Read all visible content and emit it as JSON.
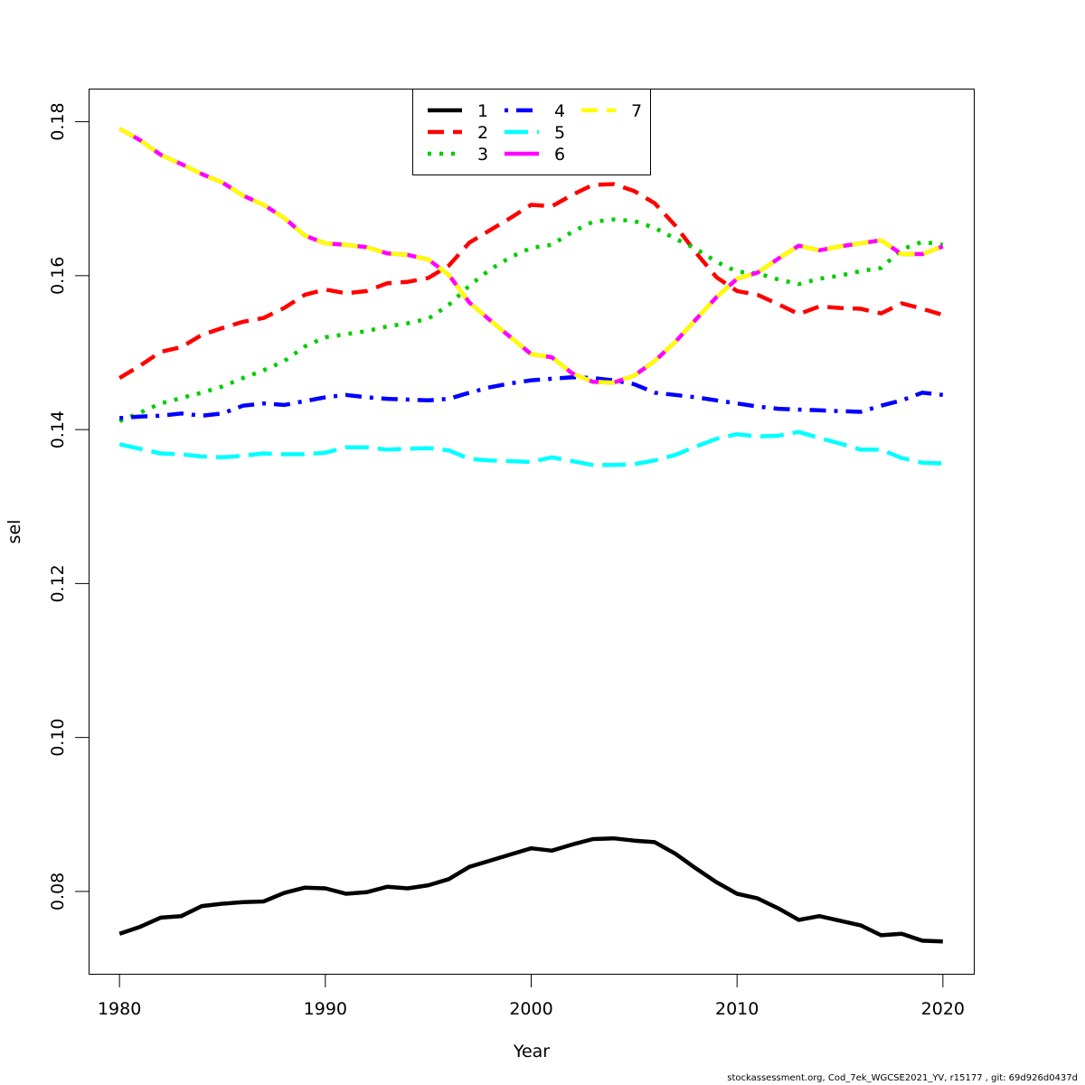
{
  "chart_data": {
    "type": "line",
    "title": "",
    "xlabel": "Year",
    "ylabel": "sel",
    "xlim": [
      1978.5,
      2021.5
    ],
    "ylim": [
      0.0693,
      0.1843
    ],
    "x_ticks": [
      1980,
      1990,
      2000,
      2010,
      2020
    ],
    "y_ticks": [
      0.08,
      0.1,
      0.12,
      0.14,
      0.16,
      0.18
    ],
    "y_tick_labels": [
      "0.08",
      "0.10",
      "0.12",
      "0.14",
      "0.16",
      "0.18"
    ],
    "x": [
      1980,
      1981,
      1982,
      1983,
      1984,
      1985,
      1986,
      1987,
      1988,
      1989,
      1990,
      1991,
      1992,
      1993,
      1994,
      1995,
      1996,
      1997,
      1998,
      1999,
      2000,
      2001,
      2002,
      2003,
      2004,
      2005,
      2006,
      2007,
      2008,
      2009,
      2010,
      2011,
      2012,
      2013,
      2014,
      2015,
      2016,
      2017,
      2018,
      2019,
      2020
    ],
    "legend_position": "top-center",
    "series": [
      {
        "name": "1",
        "color": "#000000",
        "dash": "solid",
        "values": [
          0.0745,
          0.0754,
          0.0766,
          0.0768,
          0.0781,
          0.0784,
          0.0786,
          0.0787,
          0.0798,
          0.0805,
          0.0804,
          0.0797,
          0.0799,
          0.0806,
          0.0804,
          0.0808,
          0.0816,
          0.0832,
          0.084,
          0.0848,
          0.0856,
          0.0853,
          0.0861,
          0.0868,
          0.0869,
          0.0866,
          0.0864,
          0.0849,
          0.083,
          0.0812,
          0.0797,
          0.0791,
          0.0778,
          0.0763,
          0.0768,
          0.0762,
          0.0756,
          0.0743,
          0.0745,
          0.0736,
          0.0735
        ]
      },
      {
        "name": "2",
        "color": "#ff0000",
        "dash": "dashed",
        "values": [
          0.1467,
          0.1483,
          0.1501,
          0.1507,
          0.1523,
          0.1532,
          0.154,
          0.1545,
          0.1558,
          0.1575,
          0.1582,
          0.1577,
          0.158,
          0.159,
          0.1592,
          0.1597,
          0.1613,
          0.1643,
          0.1659,
          0.1675,
          0.1692,
          0.169,
          0.1705,
          0.1718,
          0.1719,
          0.171,
          0.1694,
          0.1665,
          0.163,
          0.1598,
          0.158,
          0.1575,
          0.1563,
          0.155,
          0.156,
          0.1558,
          0.1557,
          0.1551,
          0.1564,
          0.1557,
          0.1549
        ]
      },
      {
        "name": "3",
        "color": "#00cd00",
        "dash": "dotted",
        "values": [
          0.1411,
          0.1422,
          0.1434,
          0.1441,
          0.1448,
          0.1456,
          0.1467,
          0.1477,
          0.1489,
          0.1508,
          0.152,
          0.1524,
          0.1528,
          0.1534,
          0.1538,
          0.1544,
          0.1562,
          0.1587,
          0.1608,
          0.1624,
          0.1636,
          0.164,
          0.1657,
          0.167,
          0.1673,
          0.1671,
          0.1662,
          0.1648,
          0.1635,
          0.1618,
          0.1605,
          0.1603,
          0.1595,
          0.1589,
          0.1596,
          0.16,
          0.1606,
          0.161,
          0.1634,
          0.1644,
          0.164
        ]
      },
      {
        "name": "4",
        "color": "#0000ff",
        "dash": "dashdot",
        "values": [
          0.1415,
          0.1417,
          0.1418,
          0.1421,
          0.1418,
          0.1421,
          0.1431,
          0.1434,
          0.1432,
          0.1437,
          0.1442,
          0.1445,
          0.1442,
          0.144,
          0.1439,
          0.1438,
          0.144,
          0.1448,
          0.1455,
          0.146,
          0.1464,
          0.1466,
          0.1468,
          0.1467,
          0.1464,
          0.1459,
          0.1448,
          0.1445,
          0.1442,
          0.1438,
          0.1434,
          0.143,
          0.1427,
          0.1426,
          0.1425,
          0.1424,
          0.1423,
          0.1431,
          0.1438,
          0.1448,
          0.1445
        ]
      },
      {
        "name": "5",
        "color": "#00ffff",
        "dash": "longdash",
        "values": [
          0.1381,
          0.1375,
          0.1369,
          0.1368,
          0.1365,
          0.1364,
          0.1366,
          0.1369,
          0.1368,
          0.1368,
          0.137,
          0.1377,
          0.1377,
          0.1374,
          0.1375,
          0.1376,
          0.1373,
          0.1362,
          0.136,
          0.1359,
          0.1358,
          0.1364,
          0.1359,
          0.1354,
          0.1354,
          0.1355,
          0.136,
          0.1367,
          0.1378,
          0.1388,
          0.1394,
          0.1391,
          0.1392,
          0.1397,
          0.1389,
          0.1382,
          0.1374,
          0.1374,
          0.1363,
          0.1357,
          0.1356
        ]
      },
      {
        "name": "6",
        "color": "#ff00ff",
        "dash": "solid",
        "values": [
          0.1791,
          0.1776,
          0.1757,
          0.1745,
          0.1732,
          0.1721,
          0.1704,
          0.1692,
          0.1675,
          0.1652,
          0.1642,
          0.164,
          0.1637,
          0.1629,
          0.1627,
          0.1621,
          0.1601,
          0.1565,
          0.1542,
          0.152,
          0.1498,
          0.1494,
          0.1473,
          0.1462,
          0.1461,
          0.147,
          0.1489,
          0.1514,
          0.1543,
          0.1572,
          0.1596,
          0.1604,
          0.1622,
          0.1639,
          0.1633,
          0.1638,
          0.1642,
          0.1646,
          0.1628,
          0.1628,
          0.1638
        ]
      },
      {
        "name": "7",
        "color": "#ffff00",
        "dash": "dashed",
        "values": [
          0.1791,
          0.1776,
          0.1757,
          0.1745,
          0.1732,
          0.1721,
          0.1704,
          0.1692,
          0.1675,
          0.1652,
          0.1642,
          0.164,
          0.1637,
          0.1629,
          0.1627,
          0.1621,
          0.1601,
          0.1565,
          0.1542,
          0.152,
          0.1498,
          0.1494,
          0.1473,
          0.1462,
          0.1461,
          0.147,
          0.1489,
          0.1514,
          0.1543,
          0.1572,
          0.1596,
          0.1604,
          0.1622,
          0.1639,
          0.1633,
          0.1638,
          0.1642,
          0.1646,
          0.1628,
          0.1628,
          0.1638
        ]
      }
    ]
  },
  "footer": "stockassessment.org, Cod_7ek_WGCSE2021_YV, r15177 , git: 69d926d0437d"
}
